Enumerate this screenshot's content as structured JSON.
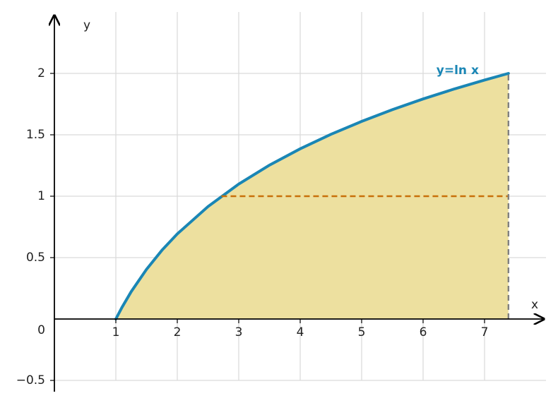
{
  "chart_data": {
    "type": "line",
    "x": [
      1,
      1.1,
      1.25,
      1.5,
      1.75,
      2,
      2.5,
      3,
      3.5,
      4,
      4.5,
      5,
      5.5,
      6,
      6.5,
      7,
      7.389
    ],
    "series": [
      {
        "name": "y=ln x",
        "color": "#1a86b5",
        "values": [
          0,
          0.095,
          0.223,
          0.405,
          0.56,
          0.693,
          0.916,
          1.099,
          1.253,
          1.386,
          1.504,
          1.609,
          1.705,
          1.792,
          1.872,
          1.946,
          2.0
        ]
      }
    ],
    "fill_color": "#ede09f",
    "xlabel": "x",
    "ylabel": "y",
    "xlim": [
      0,
      8
    ],
    "ylim": [
      -0.5,
      2.5
    ],
    "xticks": [
      1,
      2,
      3,
      4,
      5,
      6,
      7
    ],
    "yticks": [
      {
        "value": -0.5,
        "label": "−0.5"
      },
      0,
      0.5,
      1,
      1.5,
      2
    ],
    "grid": true,
    "reference_lines": [
      {
        "y": 1,
        "x_from": 2.718,
        "x_to": 7.389,
        "color": "#c8700a"
      },
      {
        "x": 7.389,
        "y_from": 0,
        "y_to": 2,
        "color": "#808080"
      }
    ]
  }
}
